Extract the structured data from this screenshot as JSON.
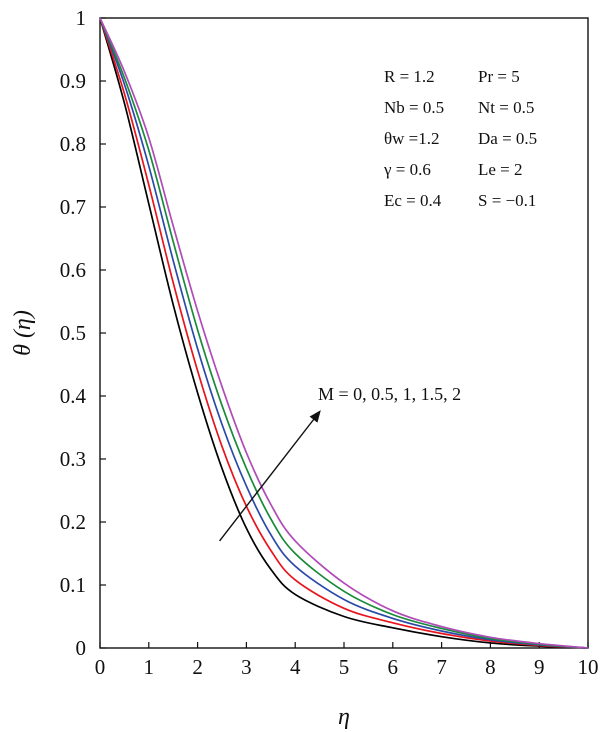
{
  "chart_data": {
    "type": "line",
    "xlabel": "η",
    "ylabel": "θ (η)",
    "xlim": [
      0,
      10
    ],
    "ylim": [
      0,
      1
    ],
    "xticks": [
      "0",
      "1",
      "2",
      "3",
      "4",
      "5",
      "6",
      "7",
      "8",
      "9",
      "10"
    ],
    "yticks": [
      "0",
      "0.1",
      "0.2",
      "0.3",
      "0.4",
      "0.5",
      "0.6",
      "0.7",
      "0.8",
      "0.9",
      "1"
    ],
    "grid": false,
    "x": [
      0,
      0.5,
      1,
      1.5,
      2,
      2.5,
      3,
      3.5,
      4,
      5,
      6,
      7,
      8,
      9,
      10
    ],
    "series": [
      {
        "color": "#000000",
        "values": [
          1.0,
          0.865,
          0.705,
          0.545,
          0.405,
          0.285,
          0.19,
          0.125,
          0.085,
          0.05,
          0.032,
          0.018,
          0.008,
          0.003,
          0.0
        ]
      },
      {
        "color": "#e8141c",
        "values": [
          1.0,
          0.88,
          0.735,
          0.58,
          0.44,
          0.32,
          0.225,
          0.155,
          0.108,
          0.063,
          0.04,
          0.023,
          0.011,
          0.004,
          0.0
        ]
      },
      {
        "color": "#2a4aa8",
        "values": [
          1.0,
          0.895,
          0.765,
          0.615,
          0.475,
          0.355,
          0.257,
          0.18,
          0.13,
          0.077,
          0.047,
          0.027,
          0.013,
          0.005,
          0.0
        ]
      },
      {
        "color": "#1a8a3a",
        "values": [
          1.0,
          0.905,
          0.79,
          0.645,
          0.505,
          0.385,
          0.285,
          0.205,
          0.15,
          0.09,
          0.053,
          0.031,
          0.015,
          0.006,
          0.0
        ]
      },
      {
        "color": "#b04bb8",
        "values": [
          1.0,
          0.915,
          0.81,
          0.67,
          0.535,
          0.415,
          0.31,
          0.228,
          0.17,
          0.103,
          0.059,
          0.034,
          0.017,
          0.007,
          0.0
        ]
      }
    ],
    "parameters": [
      [
        "R = 1.2",
        "Pr = 5"
      ],
      [
        "Nb = 0.5",
        "Nt = 0.5"
      ],
      [
        "θw =1.2",
        "Da = 0.5"
      ],
      [
        "γ = 0.6",
        "Le = 2"
      ],
      [
        "Ec = 0.4",
        "S = −0.1"
      ]
    ],
    "annotation": {
      "text": "M = 0, 0.5, 1, 1.5, 2",
      "arrow_from": [
        2.45,
        0.17
      ],
      "arrow_to": [
        4.5,
        0.375
      ]
    }
  }
}
